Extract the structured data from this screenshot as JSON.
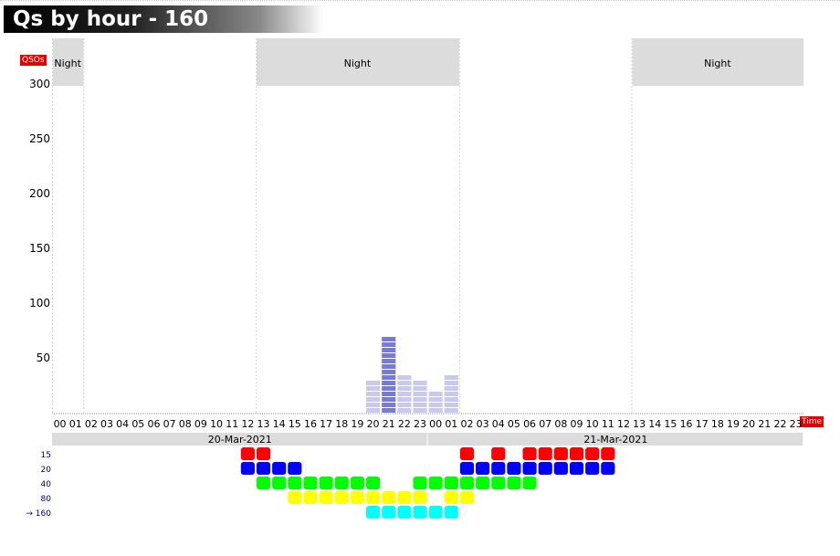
{
  "title": "Qs by hour - 160",
  "chart_data": {
    "type": "bar",
    "ylabel": "QSOs",
    "xlabel": "Time",
    "yticks": [
      50,
      100,
      150,
      200,
      250,
      300
    ],
    "ylim": [
      0,
      310
    ],
    "categories": [
      "00",
      "01",
      "02",
      "03",
      "04",
      "05",
      "06",
      "07",
      "08",
      "09",
      "10",
      "11",
      "12",
      "13",
      "14",
      "15",
      "16",
      "17",
      "18",
      "19",
      "20",
      "21",
      "22",
      "23",
      "00",
      "01",
      "02",
      "03",
      "04",
      "05",
      "06",
      "07",
      "08",
      "09",
      "10",
      "11",
      "12",
      "13",
      "14",
      "15",
      "16",
      "17",
      "18",
      "19",
      "20",
      "21",
      "22",
      "23"
    ],
    "dates": [
      {
        "label": "20-Mar-2021",
        "start": 0,
        "end": 24
      },
      {
        "label": "21-Mar-2021",
        "start": 24,
        "end": 48
      }
    ],
    "night": [
      {
        "start": 0,
        "end": 2,
        "label": "Night"
      },
      {
        "start": 13,
        "end": 26,
        "label": "Night"
      },
      {
        "start": 37,
        "end": 48,
        "label": "Night"
      }
    ],
    "series": [
      {
        "name": "160",
        "values": [
          0,
          0,
          0,
          0,
          0,
          0,
          0,
          0,
          0,
          0,
          0,
          0,
          0,
          0,
          0,
          0,
          0,
          0,
          0,
          0,
          30,
          72,
          35,
          30,
          20,
          35,
          0,
          0,
          0,
          0,
          0,
          0,
          0,
          0,
          0,
          0,
          0,
          0,
          0,
          0,
          0,
          0,
          0,
          0,
          0,
          0,
          0,
          0
        ]
      }
    ],
    "band_activity": [
      {
        "band": "15",
        "color": "#ff0000",
        "hours": [
          12,
          13,
          26,
          28,
          30,
          31,
          32,
          33,
          34,
          35
        ]
      },
      {
        "band": "20",
        "color": "#0000ff",
        "hours": [
          12,
          13,
          14,
          15,
          26,
          27,
          28,
          29,
          30,
          31,
          32,
          33,
          34,
          35
        ]
      },
      {
        "band": "40",
        "color": "#00ff00",
        "hours": [
          13,
          14,
          15,
          16,
          17,
          18,
          19,
          20,
          23,
          24,
          25,
          26,
          27,
          28,
          29,
          30
        ]
      },
      {
        "band": "80",
        "color": "#ffff00",
        "hours": [
          15,
          16,
          17,
          18,
          19,
          20,
          21,
          22,
          23,
          25,
          26
        ]
      },
      {
        "band": "160",
        "color": "#00ffff",
        "hours": [
          20,
          21,
          22,
          23,
          24,
          25
        ]
      }
    ],
    "selected_band": "160",
    "selected_marker": "→"
  }
}
